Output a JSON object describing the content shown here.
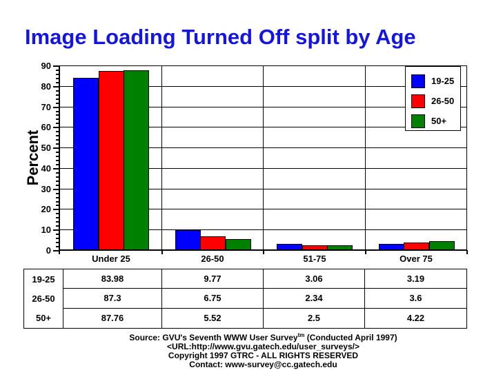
{
  "title": "Image Loading Turned Off split by Age",
  "title_color": "#1515e1",
  "chart_data": {
    "type": "bar",
    "categories": [
      "Under 25",
      "26-50",
      "51-75",
      "Over 75"
    ],
    "series": [
      {
        "name": "19-25",
        "color": "#0000ff",
        "values": [
          83.98,
          9.77,
          3.06,
          3.19
        ]
      },
      {
        "name": "26-50",
        "color": "#ff0000",
        "values": [
          87.3,
          6.75,
          2.34,
          3.6
        ]
      },
      {
        "name": "50+",
        "color": "#008000",
        "values": [
          87.76,
          5.52,
          2.5,
          4.22
        ]
      }
    ],
    "title": "Image Loading Turned Off split by Age",
    "xlabel": "",
    "ylabel": "Percent",
    "ylim": [
      0,
      90
    ],
    "y_ticks": [
      0,
      10,
      20,
      30,
      40,
      50,
      60,
      70,
      80,
      90
    ],
    "y_minor_step": 2,
    "grid": "horizontal major gridlines + vertical category dividers",
    "legend_position": "top-right"
  },
  "table": {
    "row_labels": [
      "19-25",
      "26-50",
      "50+"
    ],
    "rows": [
      [
        "83.98",
        "9.77",
        "3.06",
        "3.19"
      ],
      [
        "87.3",
        "6.75",
        "2.34",
        "3.6"
      ],
      [
        "87.76",
        "5.52",
        "2.5",
        "4.22"
      ]
    ]
  },
  "footer": {
    "line1_prefix": "Source: GVU's Seventh WWW User Survey",
    "line1_sup": "tm",
    "line1_suffix": " (Conducted April 1997)",
    "line2": "<URL:http://www.gvu.gatech.edu/user_surveys/>",
    "line3": "Copyright 1997 GTRC - ALL RIGHTS RESERVED",
    "line4": "Contact: www-survey@cc.gatech.edu"
  }
}
